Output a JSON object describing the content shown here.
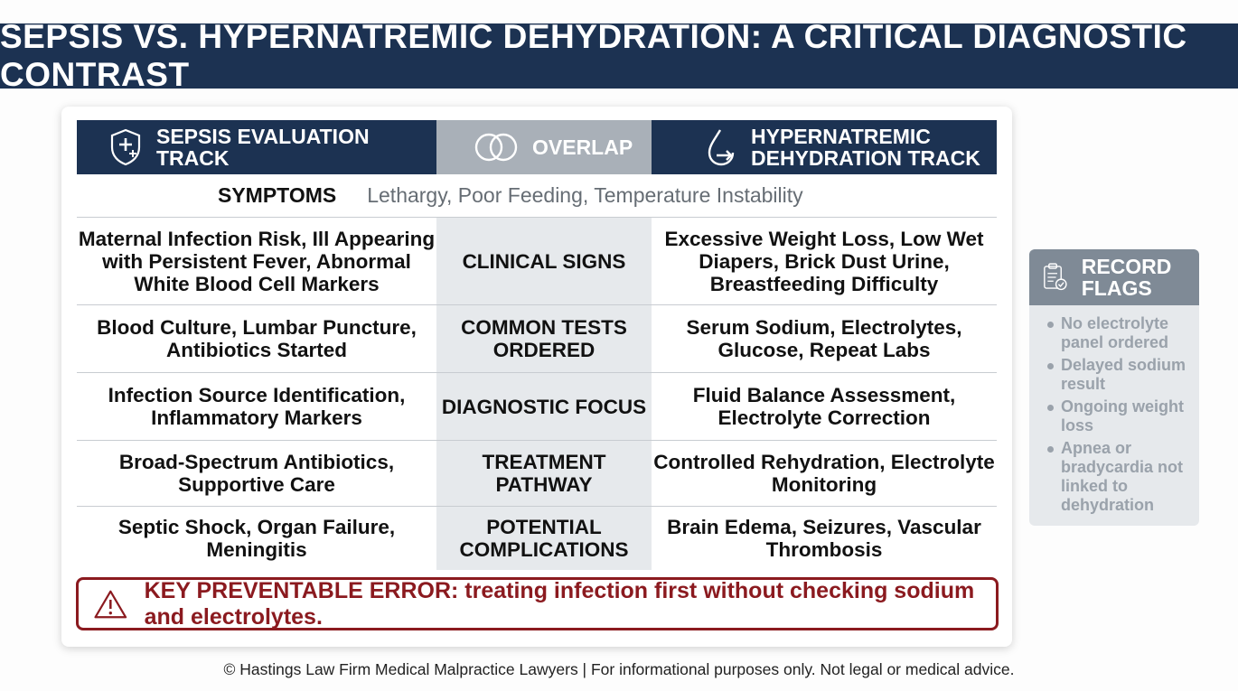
{
  "title": "SEPSIS VS. HYPERNATREMIC DEHYDRATION: A CRITICAL DIAGNOSTIC CONTRAST",
  "headers": {
    "sepsis": "SEPSIS EVALUATION TRACK",
    "overlap": "OVERLAP",
    "dehydration": "HYPERNATREMIC DEHYDRATION TRACK"
  },
  "icons": {
    "sepsis": "shield-plus-icon",
    "overlap": "overlapping-circles-icon",
    "dehydration": "droplet-arrow-icon",
    "error": "warning-triangle-icon",
    "flags": "clipboard-check-icon"
  },
  "symptoms": {
    "label": "SYMPTOMS",
    "value": "Lethargy, Poor Feeding, Temperature Instability"
  },
  "rows": [
    {
      "sepsis": "Maternal Infection Risk, Ill Appearing with Persistent Fever, Abnormal White Blood Cell Markers",
      "category": "CLINICAL SIGNS",
      "dehydration": "Excessive Weight Loss, Low Wet Diapers, Brick Dust Urine, Breastfeeding Difficulty"
    },
    {
      "sepsis": "Blood Culture, Lumbar Puncture, Antibiotics Started",
      "category": "COMMON TESTS ORDERED",
      "dehydration": "Serum Sodium, Electrolytes, Glucose, Repeat Labs"
    },
    {
      "sepsis": "Infection Source Identification, Inflammatory Markers",
      "category": "DIAGNOSTIC FOCUS",
      "dehydration": "Fluid Balance Assessment, Electrolyte Correction"
    },
    {
      "sepsis": "Broad-Spectrum Antibiotics, Supportive Care",
      "category": "TREATMENT PATHWAY",
      "dehydration": "Controlled Rehydration, Electrolyte Monitoring"
    },
    {
      "sepsis": "Septic Shock, Organ Failure, Meningitis",
      "category": "POTENTIAL COMPLICATIONS",
      "dehydration": "Brain Edema, Seizures, Vascular Thrombosis"
    }
  ],
  "key_error": "KEY PREVENTABLE ERROR: treating infection first without checking sodium and electrolytes.",
  "record_flags": {
    "title": "RECORD FLAGS",
    "items": [
      "No electrolyte panel ordered",
      "Delayed sodium result",
      "Ongoing weight loss",
      "Apnea or bradycardia not linked to dehydration"
    ]
  },
  "footer": "© Hastings Law Firm Medical Malpractice Lawyers | For informational purposes only. Not legal or medical advice.",
  "colors": {
    "navy": "#1c3252",
    "overlap_gray": "#a9b0b8",
    "error_red": "#8b1a1f",
    "flags_head": "#7f8a96"
  }
}
